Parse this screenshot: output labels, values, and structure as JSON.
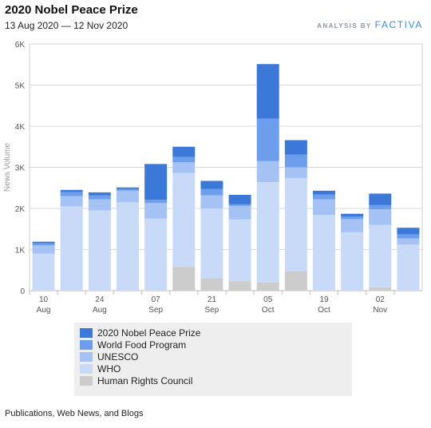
{
  "header": {
    "title": "2020 Nobel Peace Prize",
    "date_range": "13 Aug 2020 — 12 Nov 2020",
    "brand_prefix": "ANALYSIS BY",
    "brand_name": "FACTIVA"
  },
  "footer": {
    "source": "Publications, Web News, and Blogs"
  },
  "colors": {
    "nobel": "#3b78d8",
    "wfp": "#6d9eeb",
    "unesco": "#a4c2f4",
    "who": "#c9daf8",
    "hrc": "#cccccc"
  },
  "chart_data": {
    "type": "bar",
    "stacked": true,
    "ylabel": "News Volume",
    "ylim": [
      0,
      6000
    ],
    "yticks": [
      "0",
      "1K",
      "2K",
      "3K",
      "4K",
      "5K",
      "6K"
    ],
    "xticks": [
      {
        "day": "10",
        "month": "Aug",
        "week_index": 0
      },
      {
        "day": "24",
        "month": "Aug",
        "week_index": 2
      },
      {
        "day": "07",
        "month": "Sep",
        "week_index": 4
      },
      {
        "day": "21",
        "month": "Sep",
        "week_index": 6
      },
      {
        "day": "05",
        "month": "Oct",
        "week_index": 8
      },
      {
        "day": "19",
        "month": "Oct",
        "week_index": 10
      },
      {
        "day": "02",
        "month": "Nov",
        "week_index": 12
      }
    ],
    "grid": true,
    "legend_position": "bottom",
    "series": [
      {
        "name": "Human Rights Council",
        "color_key": "hrc",
        "values": [
          0,
          0,
          0,
          0,
          0,
          580,
          300,
          230,
          200,
          480,
          0,
          0,
          80,
          0
        ]
      },
      {
        "name": "WHO",
        "color_key": "who",
        "values": [
          900,
          2050,
          1950,
          2150,
          1750,
          2280,
          1700,
          1500,
          2440,
          2260,
          1840,
          1420,
          1520,
          1120
        ]
      },
      {
        "name": "UNESCO",
        "color_key": "unesco",
        "values": [
          200,
          250,
          270,
          280,
          380,
          260,
          320,
          330,
          510,
          260,
          380,
          320,
          380,
          150
        ]
      },
      {
        "name": "World Food Program",
        "color_key": "wfp",
        "values": [
          50,
          100,
          100,
          40,
          80,
          130,
          150,
          40,
          1030,
          310,
          120,
          60,
          100,
          100
        ]
      },
      {
        "name": "2020 Nobel Peace Prize",
        "color_key": "nobel",
        "values": [
          40,
          50,
          70,
          40,
          870,
          250,
          200,
          230,
          1330,
          350,
          90,
          70,
          280,
          160
        ]
      }
    ]
  },
  "legend_order": [
    "2020 Nobel Peace Prize",
    "World Food Program",
    "UNESCO",
    "WHO",
    "Human Rights Council"
  ]
}
